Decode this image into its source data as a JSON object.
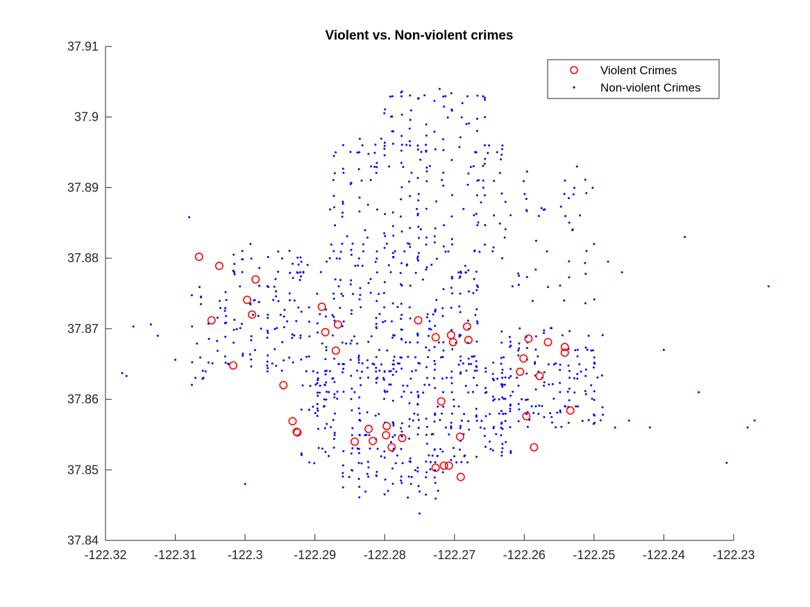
{
  "chart_data": {
    "type": "scatter",
    "title": "Violent vs. Non-violent crimes",
    "xlabel": "",
    "ylabel": "",
    "xlim": [
      -122.32,
      -122.23
    ],
    "ylim": [
      37.84,
      37.91
    ],
    "xticks": [
      "-122.32",
      "-122.31",
      "-122.3",
      "-122.29",
      "-122.28",
      "-122.27",
      "-122.26",
      "-122.25",
      "-122.24",
      "-122.23"
    ],
    "yticks": [
      "37.84",
      "37.85",
      "37.86",
      "37.87",
      "37.88",
      "37.89",
      "37.9",
      "37.91"
    ],
    "grid": false,
    "legend_position": "top-right",
    "series": [
      {
        "name": "Violent Crimes",
        "marker": "circle-open",
        "color": "#ff0000",
        "points": [
          [
            -122.3066,
            37.8802
          ],
          [
            -122.3037,
            37.8789
          ],
          [
            -122.2985,
            37.877
          ],
          [
            -122.2997,
            37.8741
          ],
          [
            -122.3048,
            37.8712
          ],
          [
            -122.299,
            37.872
          ],
          [
            -122.289,
            37.8731
          ],
          [
            -122.2885,
            37.8695
          ],
          [
            -122.2867,
            37.8706
          ],
          [
            -122.287,
            37.8669
          ],
          [
            -122.3017,
            37.8648
          ],
          [
            -122.2945,
            37.862
          ],
          [
            -122.2932,
            37.8569
          ],
          [
            -122.2925,
            37.8553
          ],
          [
            -122.2926,
            37.8554
          ],
          [
            -122.2843,
            37.854
          ],
          [
            -122.2823,
            37.8558
          ],
          [
            -122.2817,
            37.8541
          ],
          [
            -122.2797,
            37.8562
          ],
          [
            -122.2798,
            37.8549
          ],
          [
            -122.279,
            37.8532
          ],
          [
            -122.2775,
            37.8545
          ],
          [
            -122.2752,
            37.8712
          ],
          [
            -122.2727,
            37.8688
          ],
          [
            -122.2719,
            37.8597
          ],
          [
            -122.2705,
            37.8691
          ],
          [
            -122.2702,
            37.8681
          ],
          [
            -122.2682,
            37.8703
          ],
          [
            -122.268,
            37.8684
          ],
          [
            -122.2692,
            37.8547
          ],
          [
            -122.2727,
            37.8503
          ],
          [
            -122.2715,
            37.8506
          ],
          [
            -122.2708,
            37.8506
          ],
          [
            -122.2691,
            37.849
          ],
          [
            -122.2606,
            37.8639
          ],
          [
            -122.2601,
            37.8658
          ],
          [
            -122.2594,
            37.8686
          ],
          [
            -122.2597,
            37.8576
          ],
          [
            -122.2586,
            37.8532
          ],
          [
            -122.2578,
            37.8633
          ],
          [
            -122.2566,
            37.8681
          ],
          [
            -122.2542,
            37.8674
          ],
          [
            -122.2542,
            37.8666
          ],
          [
            -122.2534,
            37.8584
          ]
        ]
      },
      {
        "name": "Non-violent Crimes",
        "marker": "dot",
        "color": "#0000ff",
        "points": []
      }
    ]
  }
}
